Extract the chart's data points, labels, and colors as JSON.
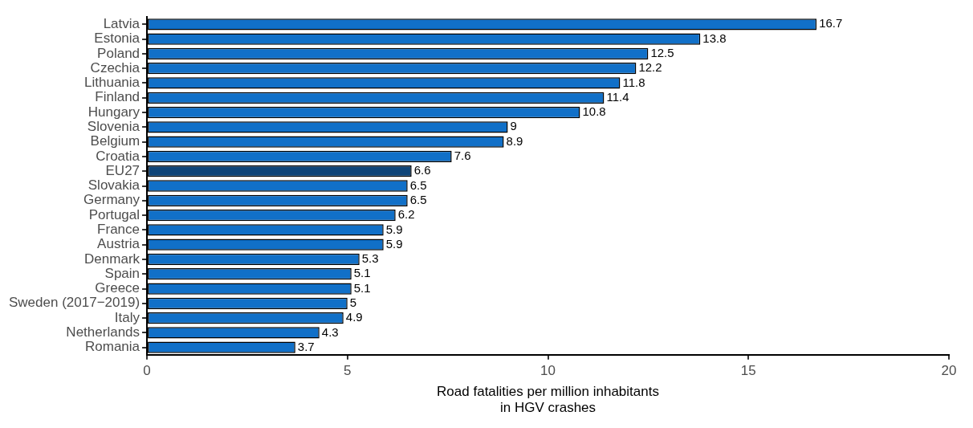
{
  "chart_data": {
    "type": "bar",
    "orientation": "horizontal",
    "xlabel": "Road fatalities per million inhabitants\nin HGV crashes",
    "categories": [
      "Latvia",
      "Estonia",
      "Poland",
      "Czechia",
      "Lithuania",
      "Finland",
      "Hungary",
      "Slovenia",
      "Belgium",
      "Croatia",
      "EU27",
      "Slovakia",
      "Germany",
      "Portugal",
      "France",
      "Austria",
      "Denmark",
      "Spain",
      "Greece",
      "Sweden (2017−2019)",
      "Italy",
      "Netherlands",
      "Romania"
    ],
    "values": [
      16.7,
      13.8,
      12.5,
      12.2,
      11.8,
      11.4,
      10.8,
      9,
      8.9,
      7.6,
      6.6,
      6.5,
      6.5,
      6.2,
      5.9,
      5.9,
      5.3,
      5.1,
      5.1,
      5,
      4.9,
      4.3,
      3.7
    ],
    "colors": [
      "#1170c8",
      "#1170c8",
      "#1170c8",
      "#1170c8",
      "#1170c8",
      "#1170c8",
      "#1170c8",
      "#1170c8",
      "#1170c8",
      "#1170c8",
      "#0e4478",
      "#1170c8",
      "#1170c8",
      "#1170c8",
      "#1170c8",
      "#1170c8",
      "#1170c8",
      "#1170c8",
      "#1170c8",
      "#1170c8",
      "#1170c8",
      "#1170c8",
      "#1170c8"
    ],
    "xlim": [
      0,
      20
    ],
    "xticks": [
      0,
      5,
      10,
      15,
      20
    ],
    "grid": false,
    "legend": false,
    "data_labels": true
  }
}
